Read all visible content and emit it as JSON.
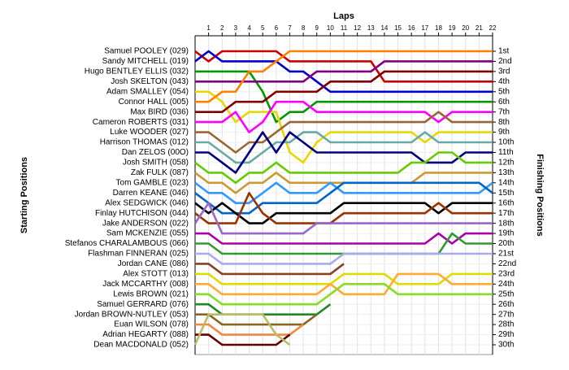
{
  "chart_data": {
    "type": "line",
    "title": "Laps",
    "y_label": "Starting Positions",
    "y2_label": "Finishing Positions",
    "x": [
      0,
      1,
      2,
      3,
      4,
      5,
      6,
      7,
      8,
      9,
      10,
      11,
      12,
      13,
      14,
      15,
      16,
      17,
      18,
      19,
      20,
      21,
      22
    ],
    "xlim": [
      0,
      22
    ],
    "xticks": [
      1,
      2,
      3,
      4,
      5,
      6,
      7,
      8,
      9,
      10,
      11,
      12,
      13,
      14,
      15,
      16,
      17,
      18,
      19,
      20,
      21,
      22
    ],
    "ylim": [
      30,
      1
    ],
    "yticks": [
      {
        "value": 1,
        "label": "1st"
      },
      {
        "value": 2,
        "label": "2nd"
      },
      {
        "value": 3,
        "label": "3rd"
      },
      {
        "value": 4,
        "label": "4th"
      },
      {
        "value": 5,
        "label": "5th"
      },
      {
        "value": 6,
        "label": "6th"
      },
      {
        "value": 7,
        "label": "7th"
      },
      {
        "value": 8,
        "label": "8th"
      },
      {
        "value": 9,
        "label": "9th"
      },
      {
        "value": 10,
        "label": "10th"
      },
      {
        "value": 11,
        "label": "11th"
      },
      {
        "value": 12,
        "label": "12th"
      },
      {
        "value": 13,
        "label": "13th"
      },
      {
        "value": 14,
        "label": "14th"
      },
      {
        "value": 15,
        "label": "15th"
      },
      {
        "value": 16,
        "label": "16th"
      },
      {
        "value": 17,
        "label": "17th"
      },
      {
        "value": 18,
        "label": "18th"
      },
      {
        "value": 19,
        "label": "19th"
      },
      {
        "value": 20,
        "label": "20th"
      },
      {
        "value": 21,
        "label": "21st"
      },
      {
        "value": 22,
        "label": "22nd"
      },
      {
        "value": 23,
        "label": "23rd"
      },
      {
        "value": 24,
        "label": "24th"
      },
      {
        "value": 25,
        "label": "25th"
      },
      {
        "value": 26,
        "label": "26th"
      },
      {
        "value": 27,
        "label": "27th"
      },
      {
        "value": 28,
        "label": "28th"
      },
      {
        "value": 29,
        "label": "29th"
      },
      {
        "value": 30,
        "label": "30th"
      }
    ],
    "grid": true,
    "series": [
      {
        "name": "Samuel POOLEY (029)",
        "color": "#cc0000",
        "values": [
          1,
          2,
          1,
          1,
          1,
          1,
          1,
          2,
          2,
          2,
          2,
          2,
          2,
          2,
          4,
          4,
          4,
          4,
          4,
          4,
          4,
          4,
          4
        ]
      },
      {
        "name": "Sandy MITCHELL (019)",
        "color": "#0000cc",
        "values": [
          2,
          1,
          2,
          2,
          2,
          2,
          2,
          3,
          3,
          4,
          5,
          5,
          5,
          5,
          5,
          5,
          5,
          5,
          5,
          5,
          5,
          5,
          5
        ]
      },
      {
        "name": "Hugo BENTLEY ELLIS (032)",
        "color": "#009900",
        "values": [
          3,
          3,
          3,
          3,
          3,
          5,
          8,
          7,
          7,
          6,
          6,
          6,
          6,
          6,
          6,
          6,
          6,
          6,
          6,
          6,
          6,
          6,
          6
        ]
      },
      {
        "name": "Josh SKELTON (043)",
        "color": "#800080",
        "values": [
          4,
          4,
          4,
          4,
          4,
          4,
          4,
          4,
          4,
          3,
          3,
          3,
          3,
          3,
          2,
          2,
          2,
          2,
          2,
          2,
          2,
          2,
          2
        ]
      },
      {
        "name": "Adam SMALLEY (054)",
        "color": "#e6d800",
        "values": [
          5,
          5,
          6,
          8,
          7,
          7,
          7,
          11,
          12,
          10,
          9,
          9,
          9,
          9,
          9,
          9,
          9,
          10,
          9,
          9,
          9,
          9,
          9
        ]
      },
      {
        "name": "Connor HALL (005)",
        "color": "#ff8000",
        "values": [
          6,
          6,
          5,
          5,
          3,
          3,
          2,
          1,
          1,
          1,
          1,
          1,
          1,
          1,
          1,
          1,
          1,
          1,
          1,
          1,
          1,
          1,
          1
        ]
      },
      {
        "name": "Max BIRD (036)",
        "color": "#800000",
        "values": [
          7,
          7,
          7,
          6,
          6,
          6,
          5,
          5,
          5,
          5,
          4,
          4,
          4,
          4,
          3,
          3,
          3,
          3,
          3,
          3,
          3,
          3,
          3
        ]
      },
      {
        "name": "Cameron ROBERTS (031)",
        "color": "#ff00ff",
        "values": [
          8,
          8,
          8,
          7,
          9,
          8,
          6,
          6,
          6,
          7,
          7,
          7,
          7,
          7,
          7,
          7,
          7,
          7,
          8,
          7,
          7,
          7,
          7
        ]
      },
      {
        "name": "Luke WOODER (027)",
        "color": "#996633",
        "values": [
          9,
          9,
          10,
          11,
          10,
          10,
          9,
          8,
          8,
          8,
          8,
          8,
          8,
          8,
          8,
          8,
          8,
          8,
          7,
          8,
          8,
          8,
          8
        ]
      },
      {
        "name": "Harrison THOMAS (012)",
        "color": "#66aaaa",
        "values": [
          10,
          10,
          11,
          12,
          12,
          11,
          10,
          10,
          9,
          9,
          10,
          10,
          10,
          10,
          10,
          10,
          10,
          9,
          10,
          10,
          10,
          10,
          10
        ]
      },
      {
        "name": "Dan ZELOS (00O)",
        "color": "#000080",
        "values": [
          11,
          11,
          12,
          13,
          11,
          9,
          11,
          9,
          10,
          11,
          11,
          11,
          11,
          11,
          11,
          11,
          11,
          12,
          12,
          12,
          11,
          11,
          11
        ]
      },
      {
        "name": "Josh SMITH (058)",
        "color": "#66cc00",
        "values": [
          12,
          13,
          13,
          14,
          13,
          13,
          12,
          13,
          13,
          13,
          13,
          13,
          13,
          13,
          13,
          13,
          12,
          12,
          11,
          11,
          12,
          12,
          12
        ]
      },
      {
        "name": "Zak FULK (087)",
        "color": "#cc9933",
        "values": [
          13,
          14,
          14,
          15,
          14,
          14,
          13,
          14,
          14,
          14,
          14,
          14,
          14,
          14,
          14,
          14,
          14,
          13,
          13,
          13,
          13,
          13,
          13
        ]
      },
      {
        "name": "Tom GAMBLE (023)",
        "color": "#3399ff",
        "values": [
          14,
          15,
          15,
          16,
          16,
          15,
          14,
          15,
          15,
          15,
          14,
          15,
          15,
          15,
          15,
          15,
          15,
          15,
          15,
          15,
          15,
          15,
          14
        ]
      },
      {
        "name": "Darren KEANE (046)",
        "color": "#0066cc",
        "values": [
          15,
          16,
          17,
          17,
          17,
          16,
          16,
          16,
          16,
          16,
          15,
          14,
          14,
          14,
          14,
          14,
          14,
          14,
          14,
          14,
          14,
          14,
          15
        ]
      },
      {
        "name": "Alex SEDGWICK (046)",
        "color": "#000000",
        "values": [
          16,
          17,
          16,
          17,
          18,
          18,
          17,
          17,
          17,
          17,
          17,
          16,
          16,
          16,
          16,
          16,
          16,
          16,
          17,
          16,
          16,
          16,
          16
        ]
      },
      {
        "name": "Finlay HUTCHISON (044)",
        "color": "#993300",
        "values": [
          17,
          18,
          18,
          18,
          15,
          17,
          18,
          18,
          18,
          18,
          18,
          17,
          17,
          17,
          17,
          17,
          17,
          17,
          16,
          17,
          17,
          17,
          17
        ]
      },
      {
        "name": "Jake ANDERSON (022)",
        "color": "#9966cc",
        "values": [
          18,
          16,
          19,
          19,
          19,
          19,
          19,
          19,
          19,
          18,
          18,
          18,
          18,
          18,
          18,
          18,
          18,
          18,
          18,
          18,
          18,
          18,
          18
        ]
      },
      {
        "name": "Sam MCKENZIE (055)",
        "color": "#aa00aa",
        "values": [
          19,
          19,
          20,
          20,
          20,
          20,
          20,
          20,
          20,
          20,
          20,
          20,
          20,
          20,
          20,
          20,
          20,
          20,
          19,
          20,
          19,
          19,
          19
        ]
      },
      {
        "name": "Stefanos CHARALAMBOUS (066)",
        "color": "#339933",
        "values": [
          20,
          20,
          21,
          21,
          21,
          21,
          21,
          21,
          21,
          21,
          21,
          21,
          21,
          21,
          21,
          21,
          21,
          21,
          21,
          19,
          20,
          20,
          20
        ]
      },
      {
        "name": "Flashman FINNERAN (025)",
        "color": "#aaaaee",
        "values": [
          21,
          21,
          22,
          22,
          22,
          22,
          22,
          22,
          22,
          22,
          22,
          21,
          21,
          21,
          21,
          21,
          21,
          21,
          21,
          21,
          21,
          21,
          21
        ]
      },
      {
        "name": "Jordan CANE (086)",
        "color": "#884422",
        "values": [
          22,
          22,
          23,
          23,
          23,
          23,
          23,
          23,
          23,
          23,
          23,
          22,
          null,
          null,
          null,
          null,
          null,
          null,
          null,
          null,
          null,
          null,
          null
        ]
      },
      {
        "name": "Alex STOTT (013)",
        "color": "#dddd00",
        "values": [
          23,
          23,
          24,
          24,
          24,
          24,
          24,
          24,
          24,
          24,
          24,
          23,
          23,
          23,
          23,
          24,
          24,
          24,
          24,
          23,
          23,
          23,
          23
        ]
      },
      {
        "name": "Jack MCCARTHY (008)",
        "color": "#ffaa33",
        "values": [
          24,
          24,
          25,
          25,
          25,
          25,
          25,
          25,
          25,
          25,
          24,
          25,
          25,
          25,
          25,
          23,
          23,
          23,
          23,
          24,
          24,
          24,
          24
        ]
      },
      {
        "name": "Lewis BROWN (021)",
        "color": "#88dd22",
        "values": [
          25,
          25,
          26,
          26,
          26,
          26,
          26,
          26,
          26,
          26,
          25,
          24,
          24,
          24,
          24,
          25,
          25,
          25,
          25,
          25,
          25,
          25,
          25
        ]
      },
      {
        "name": "Samuel GERRARD (076)",
        "color": "#228822",
        "values": [
          26,
          26,
          27,
          27,
          27,
          27,
          27,
          27,
          27,
          27,
          26,
          null,
          null,
          null,
          null,
          null,
          null,
          null,
          null,
          null,
          null,
          null,
          null
        ]
      },
      {
        "name": "Jordan BROWN-NUTLEY (053)",
        "color": "#886622",
        "values": [
          27,
          27,
          28,
          28,
          28,
          28,
          28,
          28,
          28,
          27,
          null,
          null,
          null,
          null,
          null,
          null,
          null,
          null,
          null,
          null,
          null,
          null,
          null
        ]
      },
      {
        "name": "Euan WILSON (078)",
        "color": "#ee8844",
        "values": [
          28,
          28,
          29,
          29,
          29,
          29,
          29,
          29,
          28,
          null,
          null,
          null,
          null,
          null,
          null,
          null,
          null,
          null,
          null,
          null,
          null,
          null,
          null
        ]
      },
      {
        "name": "Adrian HEGARTY (088)",
        "color": "#660000",
        "values": [
          29,
          29,
          30,
          30,
          30,
          30,
          30,
          29,
          null,
          null,
          null,
          null,
          null,
          null,
          null,
          null,
          null,
          null,
          null,
          null,
          null,
          null,
          null
        ]
      },
      {
        "name": "Dean MACDONALD (052)",
        "color": "#bbbb66",
        "values": [
          30,
          27,
          27,
          27,
          27,
          27,
          29,
          30,
          null,
          null,
          null,
          null,
          null,
          null,
          null,
          null,
          null,
          null,
          null,
          null,
          null,
          null,
          null
        ]
      }
    ]
  }
}
